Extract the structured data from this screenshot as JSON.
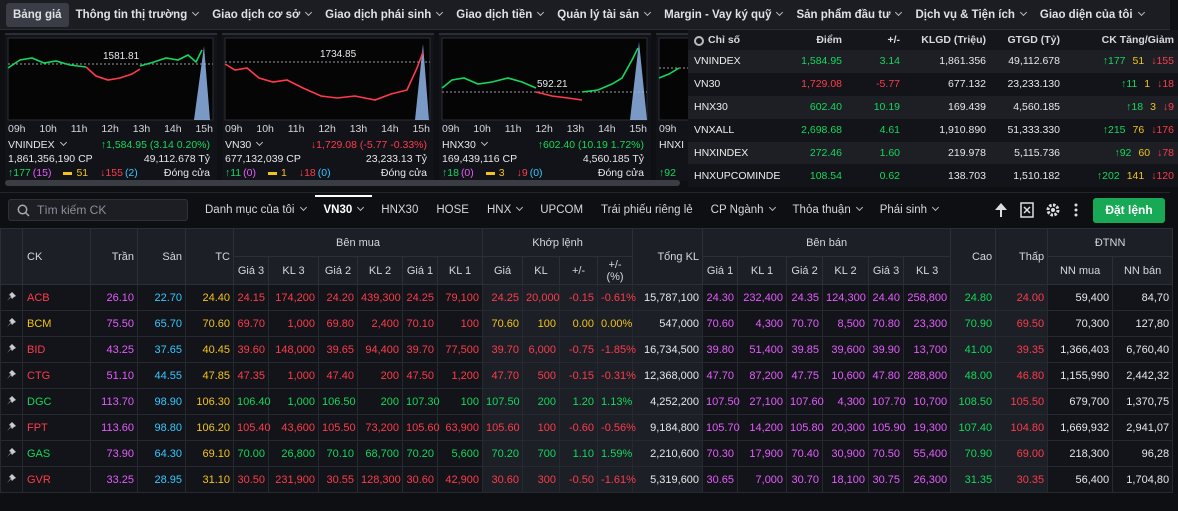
{
  "nav": {
    "items": [
      "Bảng giá",
      "Thông tin thị trường",
      "Giao dịch cơ sở",
      "Giao dịch phái sinh",
      "Giao dịch tiền",
      "Quản lý tài sản",
      "Margin - Vay ký quỹ",
      "Sản phẩm đầu tư",
      "Dịch vụ & Tiện ích",
      "Giao diện của tôi"
    ]
  },
  "index_cards": [
    {
      "name": "VNINDEX",
      "ref": "1581.81",
      "times": [
        "09h",
        "10h",
        "11h",
        "12h",
        "13h",
        "14h",
        "15h"
      ],
      "change": "↑1,584.95 (3.14 0.20%)",
      "volume": "1,861,356,190 CP",
      "value": "49,112.678 Tỷ",
      "up": "↑177",
      "up_ceiling": "(15)",
      "flat": "51",
      "down": "↓155",
      "down_floor": "(2)",
      "status": "Đóng cửa"
    },
    {
      "name": "VN30",
      "ref": "1734.85",
      "times": [
        "09h",
        "10h",
        "11h",
        "12h",
        "13h",
        "14h",
        "15h"
      ],
      "change": "↓1,729.08 (-5.77 -0.33%)",
      "volume": "677,132,039 CP",
      "value": "23,233.13 Tỷ",
      "up": "↑11",
      "up_ceiling": "(0)",
      "flat": "1",
      "down": "↓18",
      "down_floor": "(0)",
      "status": "Đóng cửa"
    },
    {
      "name": "HNX30",
      "ref": "592.21",
      "times": [
        "09h",
        "10h",
        "11h",
        "12h",
        "13h",
        "14h",
        "15h"
      ],
      "change": "↑602.40 (10.19 1.72%)",
      "volume": "169,439,116 CP",
      "value": "4,560.185 Tỷ",
      "up": "↑18",
      "up_ceiling": "(0)",
      "flat": "3",
      "down": "↓9",
      "down_floor": "(0)",
      "status": "Đóng cửa"
    },
    {
      "name": "HNXI",
      "times": [
        "09h"
      ],
      "up": "↑92"
    }
  ],
  "index_table": {
    "headers": [
      "Chỉ số",
      "Điểm",
      "+/-",
      "KLGD (Triệu)",
      "GTGD (Tỷ)",
      "CK Tăng/Giảm"
    ],
    "rows": [
      [
        "VNINDEX",
        "1,584.95",
        "3.14",
        "1,861.356",
        "49,112.678",
        "↑177",
        "51",
        "↓155"
      ],
      [
        "VN30",
        "1,729.08",
        "-5.77",
        "677.132",
        "23,233.130",
        "↑11",
        "1",
        "↓18"
      ],
      [
        "HNX30",
        "602.40",
        "10.19",
        "169.439",
        "4,560.185",
        "↑18",
        "3",
        "↓9"
      ],
      [
        "VNXALL",
        "2,698.68",
        "4.61",
        "1,910.890",
        "51,333.330",
        "↑215",
        "76",
        "↓176"
      ],
      [
        "HNXINDEX",
        "272.46",
        "1.60",
        "219.978",
        "5,115.736",
        "↑92",
        "60",
        "↓78"
      ],
      [
        "HNXUPCOMINDE",
        "108.54",
        "0.62",
        "138.703",
        "1,510.182",
        "↑202",
        "141",
        "↓120"
      ]
    ]
  },
  "toolbar": {
    "search_placeholder": "Tìm kiếm CK",
    "tabs": [
      "Danh mục của tôi",
      "VN30",
      "HNX30",
      "HOSE",
      "HNX",
      "UPCOM",
      "Trái phiếu riêng lẻ",
      "CP Ngành",
      "Thỏa thuận",
      "Phái sinh"
    ],
    "order_button": "Đặt lệnh"
  },
  "price_table": {
    "columns": {
      "ck": "CK",
      "ceiling": "Trần",
      "floor": "Sàn",
      "ref": "TC",
      "total": "Tổng KL",
      "high": "Cao",
      "low": "Thấp"
    },
    "groups": {
      "buy": "Bên mua",
      "match": "Khớp lệnh",
      "sell": "Bên bán",
      "foreign": "ĐTNN"
    },
    "buy_headers": [
      "Giá 3",
      "KL 3",
      "Giá 2",
      "KL 2",
      "Giá 1",
      "KL 1"
    ],
    "match_headers": [
      "Giá",
      "KL",
      "+/-",
      "+/- (%)"
    ],
    "sell_headers": [
      "Giá 1",
      "KL 1",
      "Giá 2",
      "KL 2",
      "Giá 3",
      "KL 3"
    ],
    "foreign_headers": [
      "NN mua",
      "NN bán"
    ],
    "rows": [
      [
        "ACB",
        "26.10",
        "22.70",
        "24.40",
        "24.15",
        "174,200",
        "24.20",
        "439,300",
        "24.25",
        "79,100",
        "24.25",
        "20,000",
        "-0.15",
        "-0.61%",
        "15,787,100",
        "24.30",
        "232,400",
        "24.35",
        "124,300",
        "24.40",
        "258,800",
        "24.80",
        "24.00",
        "59,400",
        "84,70"
      ],
      [
        "BCM",
        "75.50",
        "65.70",
        "70.60",
        "69.70",
        "1,000",
        "69.80",
        "2,400",
        "70.10",
        "100",
        "70.60",
        "100",
        "0.00",
        "0.00%",
        "547,000",
        "70.60",
        "4,300",
        "70.70",
        "8,500",
        "70.80",
        "23,300",
        "70.90",
        "69.50",
        "70,300",
        "127,80"
      ],
      [
        "BID",
        "43.25",
        "37.65",
        "40.45",
        "39.60",
        "148,000",
        "39.65",
        "94,400",
        "39.70",
        "77,500",
        "39.70",
        "6,000",
        "-0.75",
        "-1.85%",
        "16,734,500",
        "39.80",
        "51,400",
        "39.85",
        "39,600",
        "39.90",
        "13,700",
        "41.00",
        "39.35",
        "1,366,403",
        "6,760,40"
      ],
      [
        "CTG",
        "51.10",
        "44.55",
        "47.85",
        "47.35",
        "1,000",
        "47.40",
        "200",
        "47.50",
        "1,200",
        "47.70",
        "500",
        "-0.15",
        "-0.31%",
        "12,368,000",
        "47.70",
        "87,200",
        "47.75",
        "10,600",
        "47.80",
        "288,800",
        "48.00",
        "46.80",
        "1,155,990",
        "2,442,32"
      ],
      [
        "DGC",
        "113.70",
        "98.90",
        "106.30",
        "106.40",
        "1,000",
        "106.50",
        "200",
        "107.30",
        "100",
        "107.50",
        "200",
        "1.20",
        "1.13%",
        "4,252,200",
        "107.50",
        "27,100",
        "107.60",
        "4,300",
        "107.70",
        "10,700",
        "108.50",
        "105.50",
        "679,700",
        "1,370,75"
      ],
      [
        "FPT",
        "113.60",
        "98.80",
        "106.20",
        "105.40",
        "43,600",
        "105.50",
        "73,200",
        "105.60",
        "63,900",
        "105.60",
        "100",
        "-0.60",
        "-0.56%",
        "9,184,800",
        "105.70",
        "14,200",
        "105.80",
        "20,300",
        "105.90",
        "19,300",
        "107.40",
        "104.80",
        "1,669,932",
        "2,941,07"
      ],
      [
        "GAS",
        "73.90",
        "64.30",
        "69.10",
        "70.00",
        "26,800",
        "70.10",
        "68,700",
        "70.20",
        "5,600",
        "70.20",
        "700",
        "1.10",
        "1.59%",
        "2,210,600",
        "70.30",
        "17,900",
        "70.40",
        "30,900",
        "70.50",
        "55,400",
        "70.90",
        "69.00",
        "218,300",
        "96,28"
      ],
      [
        "GVR",
        "33.25",
        "28.95",
        "31.10",
        "30.50",
        "231,900",
        "30.55",
        "128,300",
        "30.60",
        "42,900",
        "30.60",
        "300",
        "-0.50",
        "-1.61%",
        "5,319,600",
        "30.65",
        "7,000",
        "30.70",
        "18,100",
        "30.75",
        "26,300",
        "31.35",
        "30.35",
        "56,400",
        "1,704,80"
      ]
    ]
  }
}
